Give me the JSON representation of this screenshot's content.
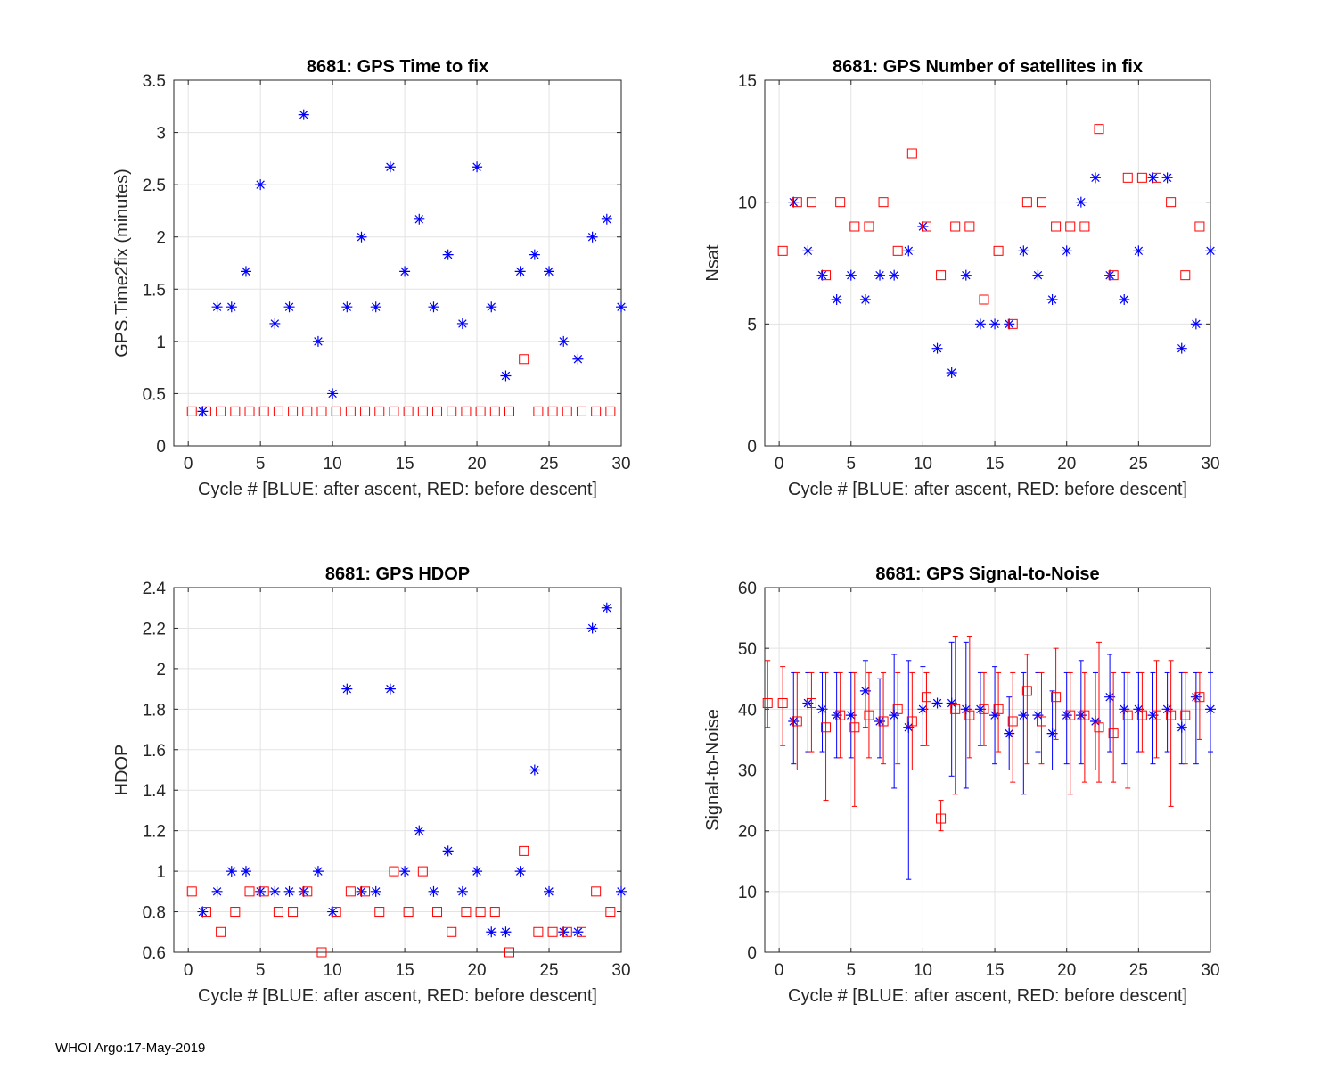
{
  "figure": {
    "footer": "WHOI Argo:17-May-2019"
  },
  "chart_data": [
    {
      "type": "scatter",
      "title": "8681: GPS Time to fix",
      "xlabel": "Cycle #  [BLUE: after ascent, RED: before descent]",
      "ylabel": "GPS.Time2fix (minutes)",
      "xlim": [
        -1,
        30
      ],
      "ylim": [
        0,
        3.5
      ],
      "xticks": [
        0,
        5,
        10,
        15,
        20,
        25,
        30
      ],
      "yticks": [
        0,
        0.5,
        1,
        1.5,
        2,
        2.5,
        3,
        3.5
      ],
      "ytick_labels": [
        "0",
        "0.5",
        "1",
        "1.5",
        "2",
        "2.5",
        "3",
        "3.5"
      ],
      "grid": true,
      "series": [
        {
          "name": "after ascent",
          "color": "#0000ff",
          "marker": "asterisk",
          "x": [
            1,
            2,
            3,
            4,
            5,
            6,
            7,
            8,
            9,
            10,
            11,
            12,
            13,
            14,
            15,
            16,
            17,
            18,
            19,
            20,
            21,
            22,
            23,
            24,
            25,
            26,
            27,
            28,
            29,
            30
          ],
          "y": [
            0.33,
            1.33,
            1.33,
            1.67,
            2.5,
            1.17,
            1.33,
            3.17,
            1.0,
            0.5,
            1.33,
            2.0,
            1.33,
            2.67,
            1.67,
            2.17,
            1.33,
            1.83,
            1.17,
            2.67,
            1.33,
            0.67,
            1.67,
            1.83,
            1.67,
            1.0,
            0.83,
            2.0,
            2.17,
            1.33
          ]
        },
        {
          "name": "before descent",
          "color": "#ff0000",
          "marker": "square",
          "x": [
            0.25,
            1.25,
            2.25,
            3.25,
            4.25,
            5.25,
            6.25,
            7.25,
            8.25,
            9.25,
            10.25,
            11.25,
            12.25,
            13.25,
            14.25,
            15.25,
            16.25,
            17.25,
            18.25,
            19.25,
            20.25,
            21.25,
            22.25,
            23.25,
            24.25,
            25.25,
            26.25,
            27.25,
            28.25,
            29.25
          ],
          "y": [
            0.33,
            0.33,
            0.33,
            0.33,
            0.33,
            0.33,
            0.33,
            0.33,
            0.33,
            0.33,
            0.33,
            0.33,
            0.33,
            0.33,
            0.33,
            0.33,
            0.33,
            0.33,
            0.33,
            0.33,
            0.33,
            0.33,
            0.33,
            0.83,
            0.33,
            0.33,
            0.33,
            0.33,
            0.33,
            0.33
          ]
        }
      ]
    },
    {
      "type": "scatter",
      "title": "8681: GPS Number of satellites in fix",
      "xlabel": "Cycle #  [BLUE: after ascent, RED: before descent]",
      "ylabel": "Nsat",
      "xlim": [
        -1,
        30
      ],
      "ylim": [
        0,
        15
      ],
      "xticks": [
        0,
        5,
        10,
        15,
        20,
        25,
        30
      ],
      "yticks": [
        0,
        5,
        10,
        15
      ],
      "ytick_labels": [
        "0",
        "5",
        "10",
        "15"
      ],
      "grid": true,
      "series": [
        {
          "name": "after ascent",
          "color": "#0000ff",
          "marker": "asterisk",
          "x": [
            1,
            2,
            3,
            4,
            5,
            6,
            7,
            8,
            9,
            10,
            11,
            12,
            13,
            14,
            15,
            16,
            17,
            18,
            19,
            20,
            21,
            22,
            23,
            24,
            25,
            26,
            27,
            28,
            29,
            30
          ],
          "y": [
            10,
            8,
            7,
            6,
            7,
            6,
            7,
            7,
            8,
            9,
            4,
            3,
            7,
            5,
            5,
            5,
            8,
            7,
            6,
            8,
            10,
            11,
            7,
            6,
            8,
            11,
            11,
            4,
            5,
            8
          ]
        },
        {
          "name": "before descent",
          "color": "#ff0000",
          "marker": "square",
          "x": [
            0.25,
            1.25,
            2.25,
            3.25,
            4.25,
            5.25,
            6.25,
            7.25,
            8.25,
            9.25,
            10.25,
            11.25,
            12.25,
            13.25,
            14.25,
            15.25,
            16.25,
            17.25,
            18.25,
            19.25,
            20.25,
            21.25,
            22.25,
            23.25,
            24.25,
            25.25,
            26.25,
            27.25,
            28.25,
            29.25
          ],
          "y": [
            8,
            10,
            10,
            7,
            10,
            9,
            9,
            10,
            8,
            12,
            9,
            7,
            9,
            9,
            6,
            8,
            5,
            10,
            10,
            9,
            9,
            9,
            13,
            7,
            11,
            11,
            11,
            10,
            7,
            9
          ]
        }
      ]
    },
    {
      "type": "scatter",
      "title": "8681: GPS HDOP",
      "xlabel": "Cycle #  [BLUE: after ascent, RED: before descent]",
      "ylabel": "HDOP",
      "xlim": [
        -1,
        30
      ],
      "ylim": [
        0.6,
        2.4
      ],
      "xticks": [
        0,
        5,
        10,
        15,
        20,
        25,
        30
      ],
      "yticks": [
        0.6,
        0.8,
        1.0,
        1.2,
        1.4,
        1.6,
        1.8,
        2.0,
        2.2,
        2.4
      ],
      "ytick_labels": [
        "0.6",
        "0.8",
        "1",
        "1.2",
        "1.4",
        "1.6",
        "1.8",
        "2",
        "2.2",
        "2.4"
      ],
      "grid": true,
      "series": [
        {
          "name": "after ascent",
          "color": "#0000ff",
          "marker": "asterisk",
          "x": [
            1,
            2,
            3,
            4,
            5,
            6,
            7,
            8,
            9,
            10,
            11,
            12,
            13,
            14,
            15,
            16,
            17,
            18,
            19,
            20,
            21,
            22,
            23,
            24,
            25,
            26,
            27,
            28,
            29,
            30
          ],
          "y": [
            0.8,
            0.9,
            1.0,
            1.0,
            0.9,
            0.9,
            0.9,
            0.9,
            1.0,
            0.8,
            1.9,
            0.9,
            0.9,
            1.9,
            1.0,
            1.2,
            0.9,
            1.1,
            0.9,
            1.0,
            0.7,
            0.7,
            1.0,
            1.5,
            0.9,
            0.7,
            0.7,
            2.2,
            2.3,
            0.9
          ]
        },
        {
          "name": "before descent",
          "color": "#ff0000",
          "marker": "square",
          "x": [
            0.25,
            1.25,
            2.25,
            3.25,
            4.25,
            5.25,
            6.25,
            7.25,
            8.25,
            9.25,
            10.25,
            11.25,
            12.25,
            13.25,
            14.25,
            15.25,
            16.25,
            17.25,
            18.25,
            19.25,
            20.25,
            21.25,
            22.25,
            23.25,
            24.25,
            25.25,
            26.25,
            27.25,
            28.25,
            29.25
          ],
          "y": [
            0.9,
            0.8,
            0.7,
            0.8,
            0.9,
            0.9,
            0.8,
            0.8,
            0.9,
            0.6,
            0.8,
            0.9,
            0.9,
            0.8,
            1.0,
            0.8,
            1.0,
            0.8,
            0.7,
            0.8,
            0.8,
            0.8,
            0.6,
            1.1,
            0.7,
            0.7,
            0.7,
            0.7,
            0.9,
            0.8
          ]
        }
      ]
    },
    {
      "type": "errorbar",
      "title": "8681: GPS Signal-to-Noise",
      "xlabel": "Cycle #  [BLUE: after ascent, RED: before descent]",
      "ylabel": "Signal-to-Noise",
      "xlim": [
        -1,
        30
      ],
      "ylim": [
        0,
        60
      ],
      "xticks": [
        0,
        5,
        10,
        15,
        20,
        25,
        30
      ],
      "yticks": [
        0,
        10,
        20,
        30,
        40,
        50,
        60
      ],
      "ytick_labels": [
        "0",
        "10",
        "20",
        "30",
        "40",
        "50",
        "60"
      ],
      "grid": true,
      "series": [
        {
          "name": "after ascent",
          "color": "#0000ff",
          "marker": "asterisk",
          "x": [
            1,
            2,
            3,
            4,
            5,
            6,
            7,
            8,
            9,
            10,
            11,
            12,
            13,
            14,
            15,
            16,
            17,
            18,
            19,
            20,
            21,
            22,
            23,
            24,
            25,
            26,
            27,
            28,
            29,
            30
          ],
          "y": [
            38,
            41,
            40,
            39,
            39,
            43,
            38,
            39,
            37,
            40,
            41,
            41,
            40,
            40,
            39,
            36,
            39,
            39,
            36,
            39,
            39,
            38,
            42,
            40,
            40,
            39,
            40,
            37,
            42,
            40
          ],
          "low": [
            31,
            33,
            33,
            32,
            32,
            37,
            32,
            27,
            12,
            34,
            41,
            29,
            27,
            34,
            31,
            30,
            26,
            33,
            30,
            31,
            31,
            30,
            33,
            31,
            33,
            31,
            33,
            31,
            31,
            33
          ],
          "high": [
            46,
            46,
            46,
            46,
            46,
            48,
            45,
            49,
            48,
            47,
            41,
            51,
            51,
            46,
            47,
            42,
            46,
            46,
            43,
            46,
            48,
            46,
            49,
            46,
            46,
            46,
            46,
            46,
            46,
            46
          ]
        },
        {
          "name": "before descent",
          "color": "#ff0000",
          "marker": "square",
          "x": [
            -0.8,
            0.25,
            1.25,
            2.25,
            3.25,
            4.25,
            5.25,
            6.25,
            7.25,
            8.25,
            9.25,
            10.25,
            11.25,
            12.25,
            13.25,
            14.25,
            15.25,
            16.25,
            17.25,
            18.25,
            19.25,
            20.25,
            21.25,
            22.25,
            23.25,
            24.25,
            25.25,
            26.25,
            27.25,
            28.25,
            29.25
          ],
          "y": [
            41,
            41,
            38,
            41,
            37,
            39,
            37,
            39,
            38,
            40,
            38,
            42,
            22,
            40,
            39,
            40,
            40,
            38,
            43,
            38,
            42,
            39,
            39,
            37,
            36,
            39,
            39,
            39,
            39,
            39,
            42
          ],
          "low": [
            37,
            34,
            30,
            33,
            25,
            32,
            24,
            32,
            31,
            31,
            30,
            34,
            20,
            26,
            32,
            34,
            33,
            28,
            31,
            31,
            35,
            26,
            28,
            28,
            28,
            27,
            33,
            32,
            24,
            31,
            35
          ],
          "high": [
            48,
            47,
            46,
            46,
            46,
            46,
            46,
            46,
            46,
            46,
            46,
            46,
            25,
            52,
            52,
            46,
            46,
            46,
            49,
            46,
            50,
            46,
            46,
            51,
            46,
            46,
            46,
            48,
            48,
            46,
            46
          ]
        }
      ]
    }
  ]
}
